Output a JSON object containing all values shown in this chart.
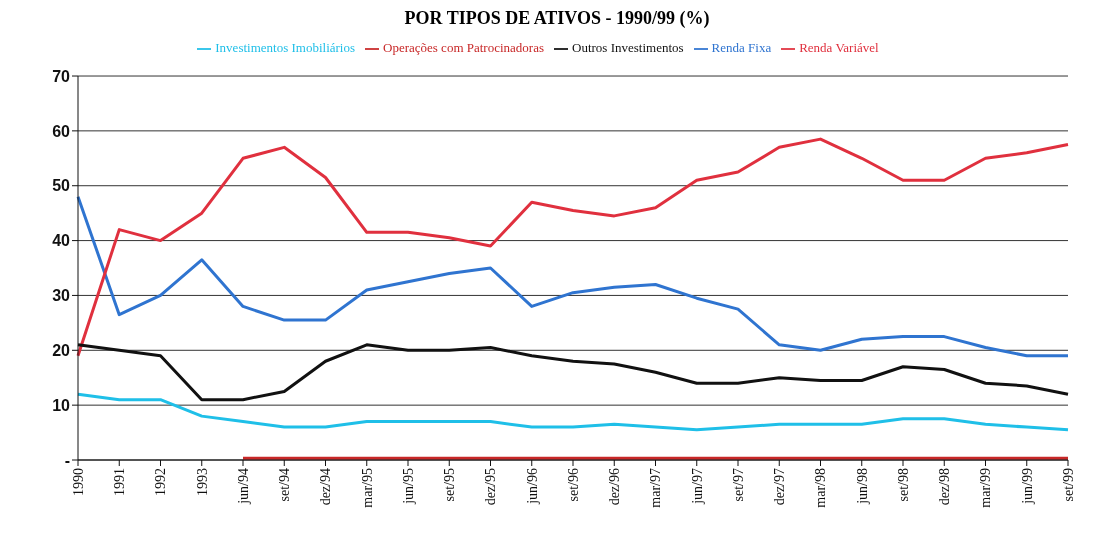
{
  "chart_data": {
    "type": "line",
    "title": "POR TIPOS DE ATIVOS - 1990/99 (%)",
    "categories": [
      "1990",
      "1991",
      "1992",
      "1993",
      "jun/94",
      "set/94",
      "dez/94",
      "mar/95",
      "jun/95",
      "set/95",
      "dez/95",
      "jun/96",
      "set/96",
      "dez/96",
      "mar/97",
      "jun/97",
      "set/97",
      "dez/97",
      "mar/98",
      "jun/98",
      "set/98",
      "dez/98",
      "mar/99",
      "jun/99",
      "set/99"
    ],
    "series": [
      {
        "name": "Renda Fixa",
        "color": "#2f74d0",
        "values": [
          48,
          26.5,
          30,
          36.5,
          28,
          25.5,
          25.5,
          31,
          32.5,
          34,
          35,
          28,
          30.5,
          31.5,
          32,
          29.5,
          27.5,
          21,
          20,
          22,
          22.5,
          22.5,
          20.5,
          19,
          19
        ]
      },
      {
        "name": "Renda Variável",
        "color": "#e0303e",
        "values": [
          19,
          42,
          40,
          45,
          55,
          57,
          51.5,
          41.5,
          41.5,
          40.5,
          39,
          47,
          45.5,
          44.5,
          46,
          51,
          52.5,
          57,
          58.5,
          55,
          51,
          51,
          55,
          56,
          57.5
        ]
      },
      {
        "name": "Operações com Patrocinadoras",
        "color": "#c82828",
        "values": [
          null,
          null,
          null,
          null,
          0.3,
          0.3,
          0.3,
          0.3,
          0.3,
          0.3,
          0.3,
          0.3,
          0.3,
          0.3,
          0.3,
          0.3,
          0.3,
          0.3,
          0.3,
          0.3,
          0.3,
          0.3,
          0.3,
          0.3,
          0.3
        ]
      },
      {
        "name": "Investimentos Imobiliários",
        "color": "#1fbfe8",
        "values": [
          12,
          11,
          11,
          8,
          7,
          6,
          6,
          7,
          7,
          7,
          7,
          6,
          6,
          6.5,
          6,
          5.5,
          6,
          6.5,
          6.5,
          6.5,
          7.5,
          7.5,
          6.5,
          6,
          5.5
        ]
      },
      {
        "name": "Outros Investimentos",
        "color": "#111111",
        "values": [
          21,
          20,
          19,
          11,
          11,
          12.5,
          18,
          21,
          20,
          20,
          20.5,
          19,
          18,
          17.5,
          16,
          14,
          14,
          15,
          14.5,
          14.5,
          17,
          16.5,
          14,
          13.5,
          12
        ]
      }
    ],
    "ylim": [
      0,
      70
    ],
    "yticks": [
      {
        "value": 0,
        "label": "-"
      },
      10,
      20,
      30,
      40,
      50,
      60,
      70
    ],
    "grid": "y",
    "legend": "top",
    "marker": "none",
    "line_style": "solid"
  }
}
